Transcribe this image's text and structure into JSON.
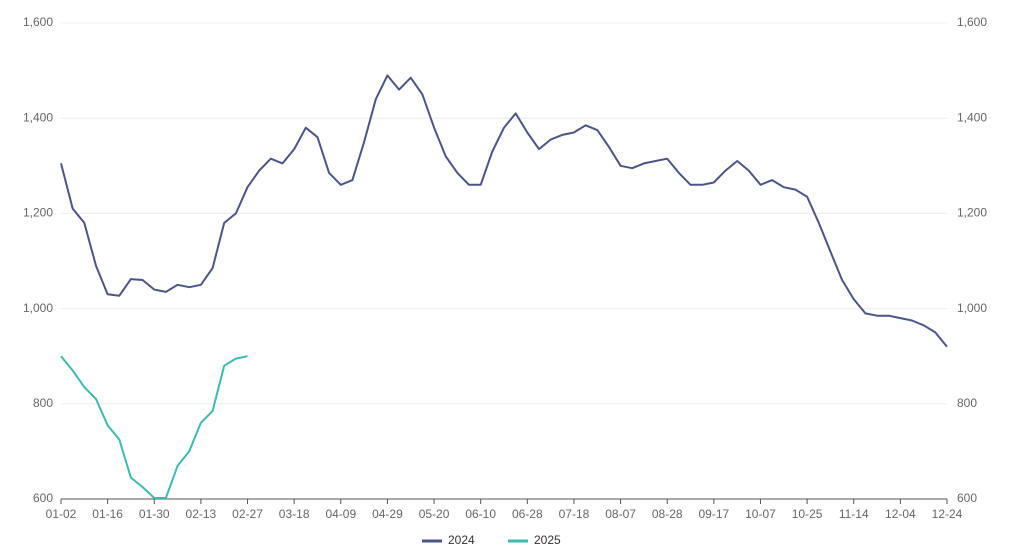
{
  "chart_data": {
    "type": "line",
    "categories": [
      "01-02",
      null,
      null,
      null,
      "01-16",
      null,
      null,
      null,
      "01-30",
      null,
      null,
      null,
      "02-13",
      null,
      null,
      null,
      "02-27",
      null,
      null,
      null,
      "03-18",
      null,
      null,
      null,
      "04-09",
      null,
      null,
      null,
      "04-29",
      null,
      null,
      null,
      "05-20",
      null,
      null,
      null,
      "06-10",
      null,
      null,
      null,
      "06-28",
      null,
      null,
      null,
      "07-18",
      null,
      null,
      null,
      "08-07",
      null,
      null,
      null,
      "08-28",
      null,
      null,
      null,
      "09-17",
      null,
      null,
      null,
      "10-07",
      null,
      null,
      null,
      "10-25",
      null,
      null,
      null,
      "11-14",
      null,
      null,
      null,
      "12-04",
      null,
      null,
      null,
      "12-24"
    ],
    "series": [
      {
        "name": "2024",
        "color": "#4b5587",
        "values": [
          1305,
          1210,
          1180,
          1090,
          1030,
          1027,
          1062,
          1060,
          1040,
          1035,
          1050,
          1045,
          1050,
          1085,
          1180,
          1200,
          1255,
          1290,
          1315,
          1305,
          1335,
          1380,
          1360,
          1285,
          1260,
          1270,
          1350,
          1440,
          1490,
          1460,
          1485,
          1450,
          1380,
          1320,
          1285,
          1260,
          1260,
          1330,
          1380,
          1410,
          1370,
          1335,
          1355,
          1365,
          1370,
          1385,
          1375,
          1340,
          1300,
          1295,
          1305,
          1310,
          1315,
          1285,
          1260,
          1260,
          1265,
          1290,
          1310,
          1290,
          1260,
          1270,
          1255,
          1250,
          1235,
          1180,
          1120,
          1060,
          1020,
          990,
          985,
          985,
          980,
          975,
          965,
          950,
          920
        ]
      },
      {
        "name": "2025",
        "color": "#3dbab2",
        "values": [
          900,
          870,
          835,
          810,
          755,
          725,
          645,
          625,
          602,
          602,
          670,
          700,
          760,
          785,
          880,
          895,
          900,
          null,
          null,
          null,
          null,
          null,
          null,
          null,
          null,
          null,
          null,
          null,
          null,
          null,
          null,
          null,
          null,
          null,
          null,
          null,
          null,
          null,
          null,
          null,
          null,
          null,
          null,
          null,
          null,
          null,
          null,
          null,
          null,
          null,
          null,
          null,
          null,
          null,
          null,
          null,
          null,
          null,
          null,
          null,
          null,
          null,
          null,
          null,
          null,
          null,
          null,
          null,
          null,
          null,
          null,
          null,
          null,
          null,
          null,
          null,
          null
        ]
      }
    ],
    "ylim": [
      600,
      1600
    ],
    "yticks": [
      600,
      800,
      {
        "value": 1000,
        "label": "1,000"
      },
      {
        "value": 1200,
        "label": "1,200"
      },
      {
        "value": 1400,
        "label": "1,400"
      },
      {
        "value": 1600,
        "label": "1,600"
      }
    ],
    "grid": true,
    "legend": "bottom"
  }
}
